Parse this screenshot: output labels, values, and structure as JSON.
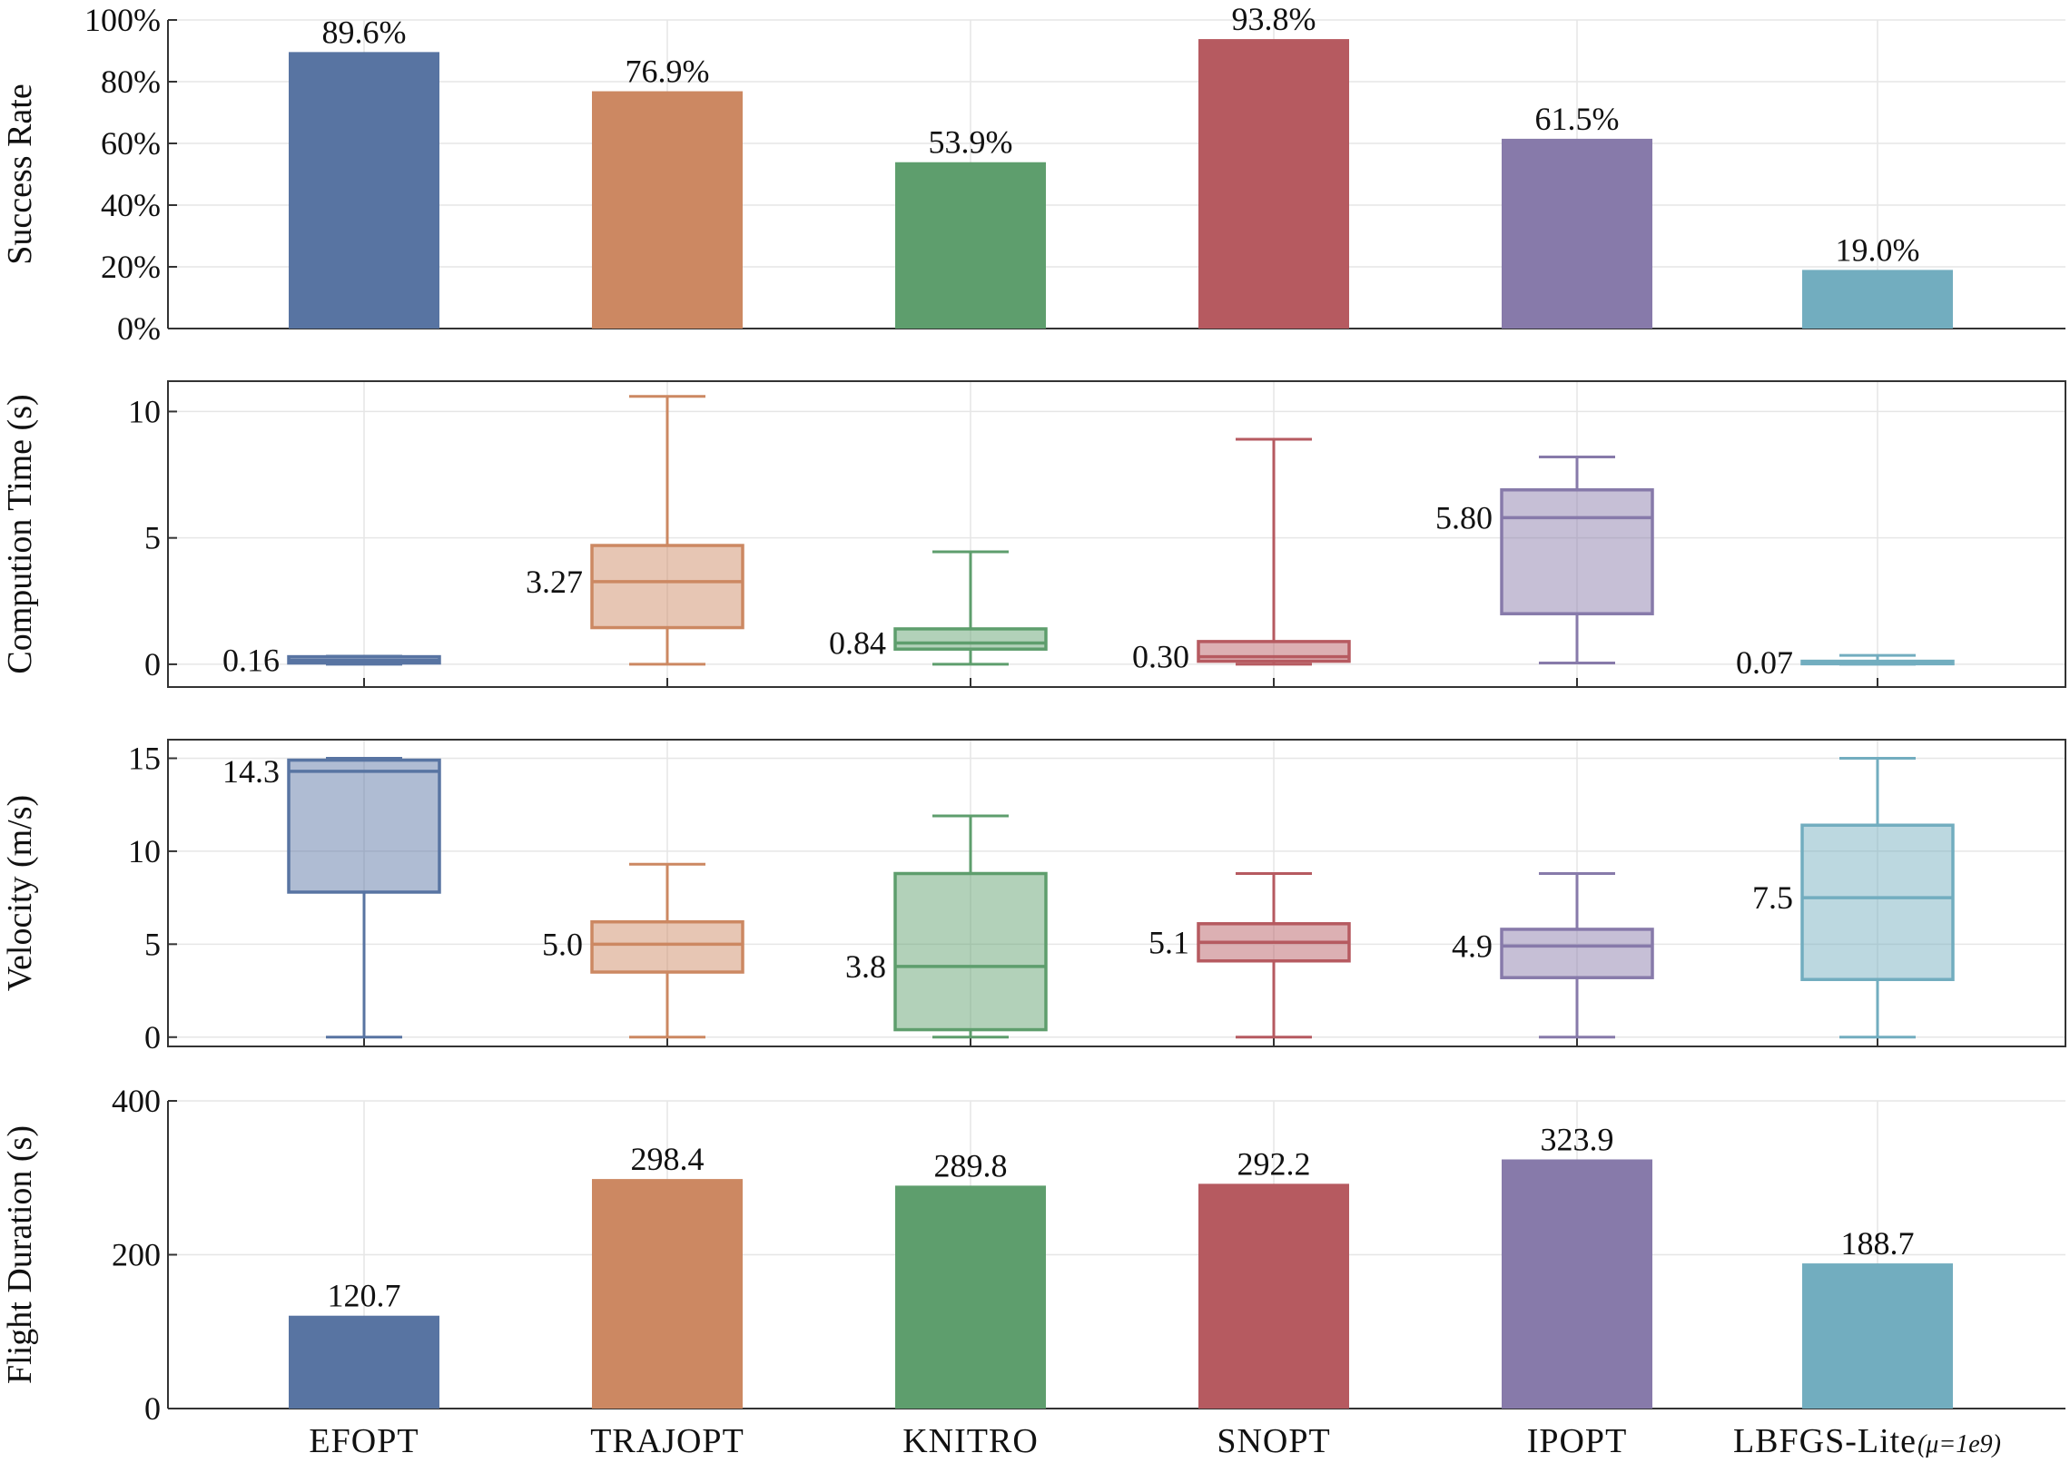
{
  "chart_data": {
    "type": "multi-panel",
    "categories": [
      "EFOPT",
      "TRAJOPT",
      "KNITRO",
      "SNOPT",
      "IPOPT",
      "LBFGS-Lite"
    ],
    "category_suffix": {
      "index": 5,
      "text": "(μ=1e9)"
    },
    "colors": [
      "#5874a2",
      "#cc8862",
      "#5e9e6d",
      "#b65a60",
      "#877aaa",
      "#72adbf"
    ],
    "panels": [
      {
        "id": "success",
        "type": "bar",
        "ylabel": "Success Rate",
        "ylim": [
          0,
          100
        ],
        "yticks": [
          0,
          20,
          40,
          60,
          80,
          100
        ],
        "ytick_labels": [
          "0%",
          "20%",
          "40%",
          "60%",
          "80%",
          "100%"
        ],
        "values": [
          89.6,
          76.9,
          53.9,
          93.8,
          61.5,
          19.0
        ],
        "labels": [
          "89.6%",
          "76.9%",
          "53.9%",
          "93.8%",
          "61.5%",
          "19.0%"
        ],
        "box_frame": false
      },
      {
        "id": "time",
        "type": "box",
        "ylabel": "Compution Time (s)",
        "ylim": [
          -0.9,
          11.2
        ],
        "yticks": [
          0,
          5,
          10
        ],
        "ytick_labels": [
          "0",
          "5",
          "10"
        ],
        "box_frame": true,
        "boxes": [
          {
            "whislo": 0.0,
            "q1": 0.05,
            "med": 0.16,
            "q3": 0.3,
            "whishi": 0.32
          },
          {
            "whislo": 0.0,
            "q1": 1.45,
            "med": 3.27,
            "q3": 4.7,
            "whishi": 10.6
          },
          {
            "whislo": 0.0,
            "q1": 0.6,
            "med": 0.84,
            "q3": 1.4,
            "whishi": 4.45
          },
          {
            "whislo": 0.0,
            "q1": 0.12,
            "med": 0.3,
            "q3": 0.9,
            "whishi": 8.9
          },
          {
            "whislo": 0.05,
            "q1": 2.0,
            "med": 5.8,
            "q3": 6.9,
            "whishi": 8.2
          },
          {
            "whislo": 0.0,
            "q1": 0.02,
            "med": 0.07,
            "q3": 0.12,
            "whishi": 0.35
          }
        ],
        "labels": [
          "0.16",
          "3.27",
          "0.84",
          "0.30",
          "5.80",
          "0.07"
        ]
      },
      {
        "id": "velocity",
        "type": "box",
        "ylabel": "Velocity (m/s)",
        "ylim": [
          -0.5,
          16.0
        ],
        "yticks": [
          0,
          5,
          10,
          15
        ],
        "ytick_labels": [
          "0",
          "5",
          "10",
          "15"
        ],
        "box_frame": true,
        "boxes": [
          {
            "whislo": 0.0,
            "q1": 7.8,
            "med": 14.3,
            "q3": 14.9,
            "whishi": 15.0
          },
          {
            "whislo": 0.0,
            "q1": 3.5,
            "med": 5.0,
            "q3": 6.2,
            "whishi": 9.3
          },
          {
            "whislo": 0.0,
            "q1": 0.4,
            "med": 3.8,
            "q3": 8.8,
            "whishi": 11.9
          },
          {
            "whislo": 0.0,
            "q1": 4.1,
            "med": 5.1,
            "q3": 6.1,
            "whishi": 8.8
          },
          {
            "whislo": 0.0,
            "q1": 3.2,
            "med": 4.9,
            "q3": 5.8,
            "whishi": 8.8
          },
          {
            "whislo": 0.0,
            "q1": 3.1,
            "med": 7.5,
            "q3": 11.4,
            "whishi": 15.0
          }
        ],
        "labels": [
          "14.3",
          "5.0",
          "3.8",
          "5.1",
          "4.9",
          "7.5"
        ]
      },
      {
        "id": "duration",
        "type": "bar",
        "ylabel": "Flight Duration (s)",
        "ylim": [
          0,
          400
        ],
        "yticks": [
          0,
          200,
          400
        ],
        "ytick_labels": [
          "0",
          "200",
          "400"
        ],
        "values": [
          120.7,
          298.4,
          289.8,
          292.2,
          323.9,
          188.7
        ],
        "labels": [
          "120.7",
          "298.4",
          "289.8",
          "292.2",
          "323.9",
          "188.7"
        ],
        "box_frame": false
      }
    ]
  }
}
